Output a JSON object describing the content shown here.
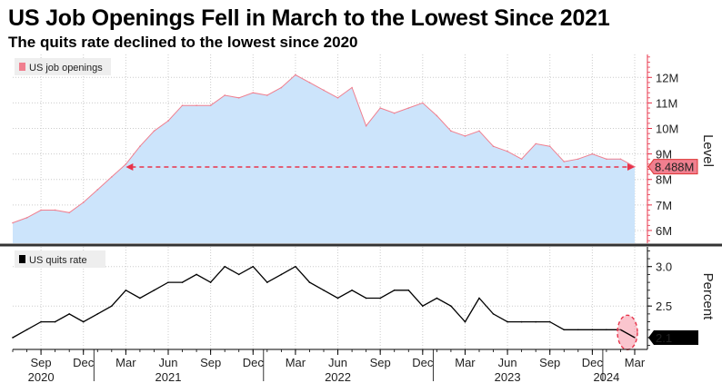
{
  "header": {
    "title": "US Job Openings Fell in March to the Lowest Since 2021",
    "subtitle": "The quits rate declined to the lowest since 2020"
  },
  "colors": {
    "openings_fill": "#cce4fb",
    "openings_line": "#f07f8f",
    "accent_red": "#e8334a",
    "quits_line": "#000000",
    "grid": "#cccccc"
  },
  "chart_data": [
    {
      "type": "area",
      "legend": "US job openings",
      "legend_position": "top-left",
      "ylabel": "Level",
      "ylim": [
        5.5,
        12.9
      ],
      "yticks": [
        6,
        7,
        8,
        9,
        10,
        11,
        12
      ],
      "ytick_labels": [
        "6M",
        "7M",
        "8M",
        "9M",
        "10M",
        "11M",
        "12M"
      ],
      "grid": true,
      "x": [
        "2020-07",
        "2020-08",
        "2020-09",
        "2020-10",
        "2020-11",
        "2020-12",
        "2021-01",
        "2021-02",
        "2021-03",
        "2021-04",
        "2021-05",
        "2021-06",
        "2021-07",
        "2021-08",
        "2021-09",
        "2021-10",
        "2021-11",
        "2021-12",
        "2022-01",
        "2022-02",
        "2022-03",
        "2022-04",
        "2022-05",
        "2022-06",
        "2022-07",
        "2022-08",
        "2022-09",
        "2022-10",
        "2022-11",
        "2022-12",
        "2023-01",
        "2023-02",
        "2023-03",
        "2023-04",
        "2023-05",
        "2023-06",
        "2023-07",
        "2023-08",
        "2023-09",
        "2023-10",
        "2023-11",
        "2023-12",
        "2024-01",
        "2024-02",
        "2024-03"
      ],
      "values": [
        6.3,
        6.5,
        6.8,
        6.8,
        6.7,
        7.1,
        7.6,
        8.1,
        8.6,
        9.3,
        9.9,
        10.3,
        10.9,
        10.9,
        10.9,
        11.3,
        11.2,
        11.4,
        11.3,
        11.6,
        12.1,
        11.8,
        11.5,
        11.2,
        11.6,
        10.1,
        10.8,
        10.6,
        10.8,
        11.0,
        10.5,
        9.9,
        9.7,
        9.9,
        9.3,
        9.1,
        8.8,
        9.4,
        9.3,
        8.7,
        8.8,
        9.0,
        8.8,
        8.8,
        8.5
      ],
      "last_value_label": "8.488M",
      "reference_line": {
        "value": 8.488,
        "from": "2021-03",
        "to": "2024-03",
        "style": "dashed"
      }
    },
    {
      "type": "line",
      "legend": "US quits rate",
      "legend_position": "top-left",
      "ylabel": "Percent",
      "ylim": [
        1.95,
        3.25
      ],
      "yticks": [
        2.5,
        3.0
      ],
      "ytick_labels": [
        "2.5",
        "3.0"
      ],
      "grid": true,
      "x": [
        "2020-07",
        "2020-08",
        "2020-09",
        "2020-10",
        "2020-11",
        "2020-12",
        "2021-01",
        "2021-02",
        "2021-03",
        "2021-04",
        "2021-05",
        "2021-06",
        "2021-07",
        "2021-08",
        "2021-09",
        "2021-10",
        "2021-11",
        "2021-12",
        "2022-01",
        "2022-02",
        "2022-03",
        "2022-04",
        "2022-05",
        "2022-06",
        "2022-07",
        "2022-08",
        "2022-09",
        "2022-10",
        "2022-11",
        "2022-12",
        "2023-01",
        "2023-02",
        "2023-03",
        "2023-04",
        "2023-05",
        "2023-06",
        "2023-07",
        "2023-08",
        "2023-09",
        "2023-10",
        "2023-11",
        "2023-12",
        "2024-01",
        "2024-02",
        "2024-03"
      ],
      "values": [
        2.1,
        2.2,
        2.3,
        2.3,
        2.4,
        2.3,
        2.4,
        2.5,
        2.7,
        2.6,
        2.7,
        2.8,
        2.8,
        2.9,
        2.8,
        3.0,
        2.9,
        3.0,
        2.8,
        2.9,
        3.0,
        2.8,
        2.7,
        2.6,
        2.7,
        2.6,
        2.6,
        2.7,
        2.7,
        2.5,
        2.6,
        2.5,
        2.3,
        2.6,
        2.4,
        2.3,
        2.3,
        2.3,
        2.3,
        2.2,
        2.2,
        2.2,
        2.2,
        2.2,
        2.1
      ],
      "last_value_label": "2.1",
      "highlight": {
        "x": "2024-03",
        "shape": "dashed-ellipse"
      }
    }
  ],
  "x_axis": {
    "month_labels": [
      {
        "label": "Sep",
        "date": "2020-09"
      },
      {
        "label": "Dec",
        "date": "2020-12"
      },
      {
        "label": "Mar",
        "date": "2021-03"
      },
      {
        "label": "Jun",
        "date": "2021-06"
      },
      {
        "label": "Sep",
        "date": "2021-09"
      },
      {
        "label": "Dec",
        "date": "2021-12"
      },
      {
        "label": "Mar",
        "date": "2022-03"
      },
      {
        "label": "Jun",
        "date": "2022-06"
      },
      {
        "label": "Sep",
        "date": "2022-09"
      },
      {
        "label": "Dec",
        "date": "2022-12"
      },
      {
        "label": "Mar",
        "date": "2023-03"
      },
      {
        "label": "Jun",
        "date": "2023-06"
      },
      {
        "label": "Sep",
        "date": "2023-09"
      },
      {
        "label": "Dec",
        "date": "2023-12"
      },
      {
        "label": "Mar",
        "date": "2024-03"
      }
    ],
    "year_labels": [
      {
        "label": "2020",
        "date": "2020-09"
      },
      {
        "label": "2021",
        "date": "2021-06"
      },
      {
        "label": "2022",
        "date": "2022-06"
      },
      {
        "label": "2023",
        "date": "2023-06"
      },
      {
        "label": "2024",
        "date": "2024-01"
      }
    ]
  }
}
